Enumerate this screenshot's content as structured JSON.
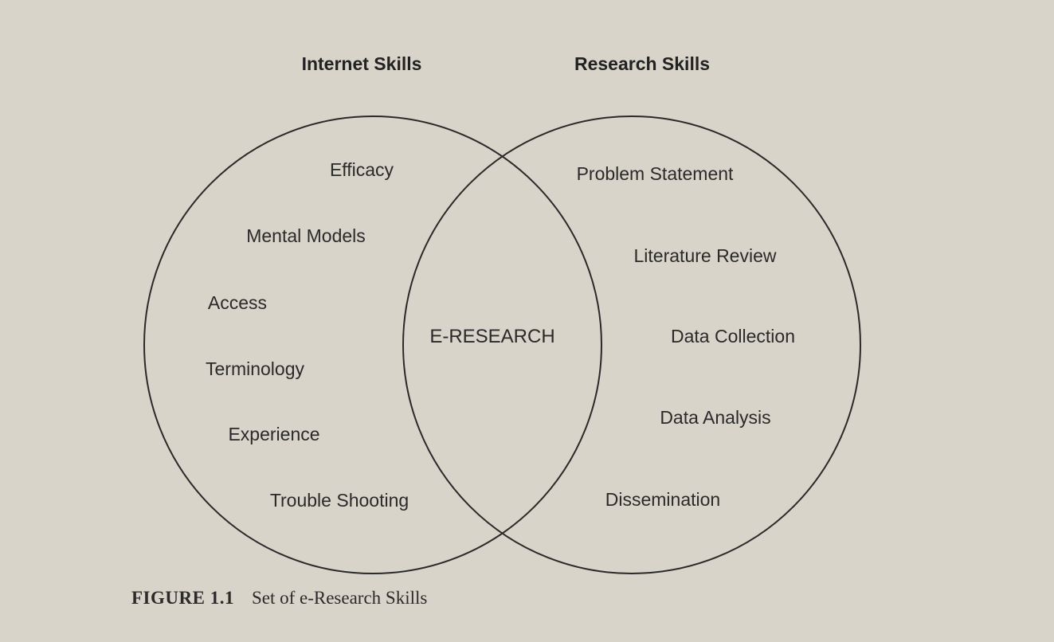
{
  "diagram": {
    "left_set": {
      "title": "Internet Skills",
      "items": [
        "Efficacy",
        "Mental Models",
        "Access",
        "Terminology",
        "Experience",
        "Trouble Shooting"
      ]
    },
    "right_set": {
      "title": "Research Skills",
      "items": [
        "Problem Statement",
        "Literature Review",
        "Data Collection",
        "Data Analysis",
        "Dissemination"
      ]
    },
    "intersection": "E-RESEARCH",
    "line_color": "#2a2a2a",
    "background_color": "#d9d4c9"
  },
  "caption": {
    "label": "FIGURE 1.1",
    "text": "Set of e-Research Skills"
  }
}
